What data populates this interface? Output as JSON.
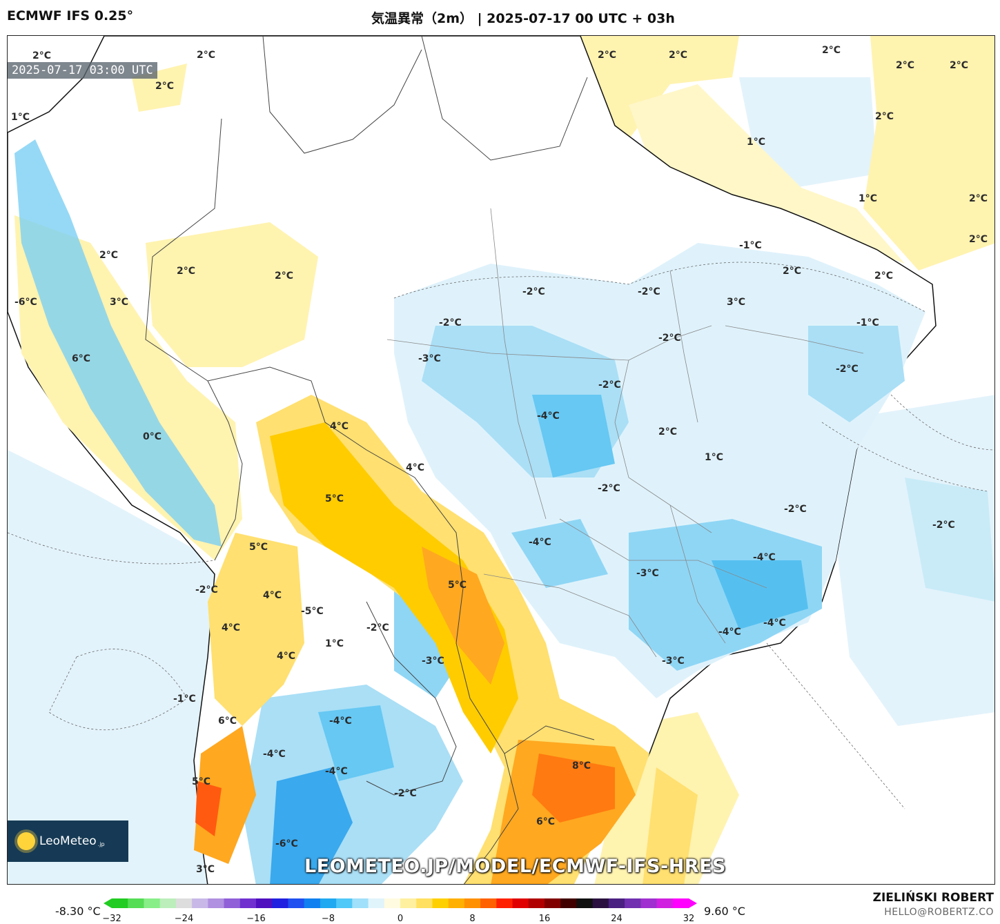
{
  "header": {
    "model": "ECMWF IFS 0.25°",
    "title": "気温異常（2m） | 2025-07-17 00 UTC + 03h"
  },
  "map": {
    "timestamp": "2025-07-17 03:00 UTC",
    "watermark_url": "LEOMETEO.JP/MODEL/ECMWF-IFS-HRES",
    "logo_text": "LeoMeteo",
    "logo_suffix": ".jp",
    "labels": [
      "2°C",
      "2°C",
      "2°C",
      "1°C",
      "2°C",
      "2°C",
      "2°C",
      "1°C",
      "2°C",
      "2°C",
      "1°C",
      "2°C",
      "2°C",
      "2°C",
      "3°C",
      "2°C",
      "2°C",
      "2°C",
      "-6°C",
      "6°C",
      "-1°C",
      "2°C",
      "3°C",
      "-2°C",
      "-2°C",
      "-2°C",
      "-1°C",
      "-3°C",
      "-2°C",
      "-2°C",
      "2°C",
      "4°C",
      "-4°C",
      "-2°C",
      "0°C",
      "4°C",
      "2°C",
      "1°C",
      "5°C",
      "-2°C",
      "-2°C",
      "-2°C",
      "-4°C",
      "5°C",
      "-3°C",
      "-4°C",
      "-4°C",
      "5°C",
      "-2°C",
      "4°C",
      "-5°C",
      "4°C",
      "-2°C",
      "1°C",
      "-4°C",
      "4°C",
      "-3°C",
      "-3°C",
      "-1°C",
      "6°C",
      "-4°C",
      "-4°C",
      "-4°C",
      "-2°C",
      "8°C",
      "5°C",
      "6°C",
      "-6°C",
      "3°C"
    ]
  },
  "colorbar": {
    "min_label": "-8.30 °C",
    "max_label": "9.60 °C",
    "ticks": [
      "−32",
      "−24",
      "−16",
      "−8",
      "0",
      "8",
      "16",
      "24",
      "32"
    ],
    "colors": [
      "#22cc22",
      "#55dd55",
      "#88ee88",
      "#bbeebb",
      "#dddddd",
      "#c8b8e8",
      "#b090e0",
      "#9060d8",
      "#7030d0",
      "#5010c0",
      "#2020e0",
      "#2050f0",
      "#1080f0",
      "#20a8f0",
      "#50c8f8",
      "#a0e0fa",
      "#e0f4fc",
      "#fffbe0",
      "#fff0a0",
      "#ffe060",
      "#ffd000",
      "#ffb000",
      "#ff9000",
      "#ff6000",
      "#ff2000",
      "#e00000",
      "#b00000",
      "#800000",
      "#400000",
      "#101010",
      "#2a1040",
      "#4a2080",
      "#7030b0",
      "#a030d0",
      "#d020e0",
      "#ff00ff"
    ]
  },
  "footer": {
    "author": "ZIELIŃSKI ROBERT",
    "email": "HELLO@ROBERTZ.CO"
  }
}
